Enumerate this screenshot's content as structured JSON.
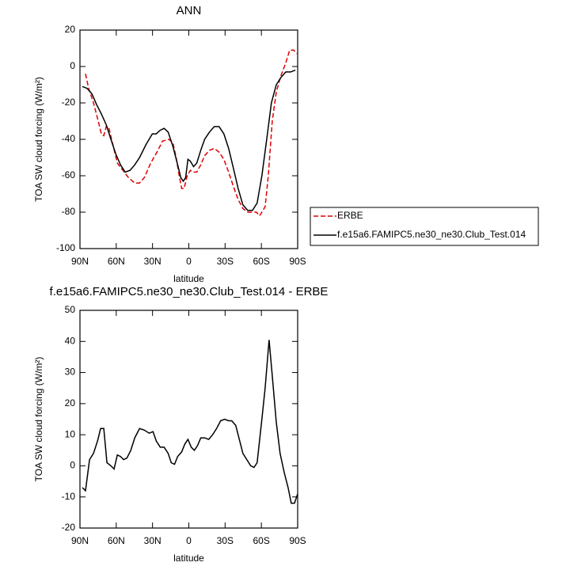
{
  "chart_data": [
    {
      "type": "line",
      "title": "ANN",
      "x_label": "latitude",
      "y_label": "TOA SW cloud forcing (W/m²)",
      "xlim": [
        90,
        -90
      ],
      "xticks": [
        {
          "value": 90,
          "label": "90N"
        },
        {
          "value": 60,
          "label": "60N"
        },
        {
          "value": 30,
          "label": "30N"
        },
        0,
        {
          "value": -30,
          "label": "30S"
        },
        {
          "value": -60,
          "label": "60S"
        },
        {
          "value": -90,
          "label": "90S"
        }
      ],
      "ylim": [
        -100,
        20
      ],
      "yticks": [
        20,
        0,
        -20,
        -40,
        -60,
        -80,
        -100
      ],
      "legend": "right",
      "series": [
        {
          "name": "ERBE",
          "color": "#e00000",
          "dash": true,
          "x": [
            85.4,
            82.8,
            78.8,
            74.9,
            72.3,
            70.3,
            68.3,
            66.4,
            63.1,
            59.1,
            54.5,
            49.9,
            44.7,
            40.7,
            36.8,
            31.5,
            26.3,
            21.7,
            16.4,
            13.1,
            10.5,
            7.9,
            5.9,
            3.9,
            1.3,
            -1.3,
            -3.9,
            -6.6,
            -9.9,
            -13.1,
            -17.1,
            -21.1,
            -25.0,
            -29.0,
            -32.9,
            -36.9,
            -40.8,
            -44.7,
            -48.7,
            -52.6,
            -55.9,
            -58.5,
            -60.4,
            -63.1,
            -65.7,
            -69.0,
            -72.3,
            -76.2,
            -80.2,
            -83.4,
            -86.7,
            -89.3
          ],
          "values": [
            -4,
            -12,
            -20,
            -30,
            -37,
            -38,
            -33,
            -33,
            -42,
            -53,
            -57,
            -61,
            -64,
            -64,
            -61,
            -53,
            -47,
            -41,
            -40,
            -42,
            -50,
            -60,
            -67,
            -67,
            -60,
            -57,
            -58,
            -58,
            -54,
            -49,
            -46,
            -45,
            -47,
            -51,
            -58,
            -66,
            -73,
            -78,
            -80,
            -80,
            -80,
            -82,
            -80,
            -77,
            -60,
            -30,
            -14,
            -5,
            2,
            9,
            9,
            7
          ]
        },
        {
          "name": "f.e15a6.FAMIPC5.ne30_ne30.Club_Test.014",
          "color": "#000000",
          "dash": false,
          "x": [
            88.0,
            84.1,
            80.1,
            76.2,
            72.3,
            68.3,
            64.4,
            60.4,
            56.5,
            52.6,
            48.6,
            44.7,
            40.7,
            35.5,
            30.2,
            26.9,
            23.6,
            20.4,
            17.1,
            13.1,
            9.2,
            6.6,
            4.6,
            2.6,
            0.7,
            -1.3,
            -3.9,
            -6.6,
            -9.9,
            -13.1,
            -17.1,
            -21.1,
            -25.0,
            -29.0,
            -32.9,
            -36.9,
            -40.8,
            -44.7,
            -48.7,
            -52.6,
            -56.5,
            -60.4,
            -64.4,
            -68.3,
            -72.3,
            -76.2,
            -80.2,
            -84.2,
            -88.1
          ],
          "values": [
            -11,
            -12,
            -15,
            -21,
            -26,
            -32,
            -40,
            -48,
            -54,
            -58,
            -57,
            -54,
            -50,
            -43,
            -37,
            -37,
            -35,
            -34,
            -36,
            -44,
            -54,
            -61,
            -63,
            -61,
            -51,
            -52,
            -55,
            -53,
            -46,
            -40,
            -36,
            -33,
            -33,
            -37,
            -45,
            -56,
            -67,
            -76,
            -79,
            -79,
            -75,
            -60,
            -40,
            -20,
            -10,
            -6,
            -3,
            -3,
            -2
          ]
        }
      ]
    },
    {
      "type": "line",
      "title": "f.e15a6.FAMIPC5.ne30_ne30.Club_Test.014 - ERBE",
      "x_label": "latitude",
      "y_label": "TOA SW cloud forcing (W/m²)",
      "xlim": [
        90,
        -90
      ],
      "xticks": [
        {
          "value": 90,
          "label": "90N"
        },
        {
          "value": 60,
          "label": "60N"
        },
        {
          "value": 30,
          "label": "30N"
        },
        0,
        {
          "value": -30,
          "label": "30S"
        },
        {
          "value": -60,
          "label": "60S"
        },
        {
          "value": -90,
          "label": "90S"
        }
      ],
      "ylim": [
        -20,
        50
      ],
      "yticks": [
        50,
        40,
        30,
        20,
        10,
        0,
        -10,
        -20
      ],
      "series": [
        {
          "color": "#000000",
          "dash": false,
          "x": [
            88.0,
            85.4,
            82.1,
            78.8,
            75.5,
            72.9,
            70.3,
            67.7,
            64.4,
            61.8,
            59.1,
            56.5,
            53.9,
            51.2,
            48.0,
            44.7,
            40.7,
            36.8,
            32.8,
            29.6,
            26.9,
            23.6,
            20.4,
            17.1,
            14.5,
            11.8,
            9.2,
            5.9,
            3.3,
            0.7,
            -2.0,
            -4.6,
            -7.2,
            -9.9,
            -13.1,
            -16.4,
            -19.7,
            -23.0,
            -26.3,
            -29.6,
            -32.9,
            -35.5,
            -38.8,
            -41.4,
            -44.7,
            -48.0,
            -51.2,
            -53.9,
            -56.5,
            -60.4,
            -63.1,
            -66.4,
            -69.0,
            -72.3,
            -75.5,
            -78.8,
            -82.1,
            -84.7,
            -87.4,
            -90.0
          ],
          "values": [
            -7,
            -8,
            2,
            4,
            8,
            12,
            12,
            1,
            0,
            -1,
            3.5,
            3,
            2,
            2.5,
            5,
            9,
            12,
            11.5,
            10.5,
            11,
            8,
            6,
            6,
            4,
            1,
            0.5,
            3,
            4.5,
            7,
            8.5,
            6,
            5,
            6.5,
            9,
            9,
            8.5,
            10,
            12,
            14.5,
            15,
            14.5,
            14.5,
            13,
            9,
            4,
            2,
            0,
            -0.5,
            1,
            15,
            25,
            40.5,
            29,
            14,
            4,
            -2,
            -7,
            -12,
            -12,
            -9
          ]
        }
      ]
    }
  ]
}
